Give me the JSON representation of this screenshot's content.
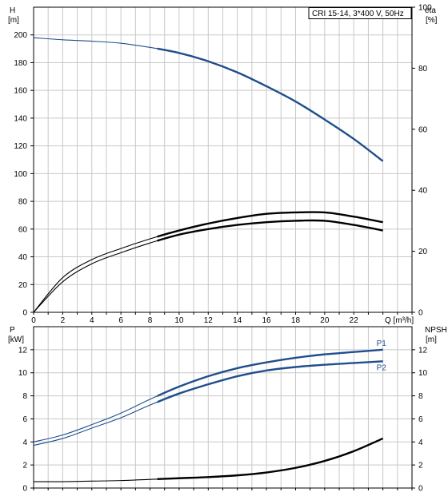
{
  "chart_data": [
    {
      "type": "line",
      "name": "top",
      "title": "CRI 15-14, 3*400 V, 50Hz",
      "xlabel": "Q [m³/h]",
      "ylabel_left": "H",
      "ylabel_left_unit": "[m]",
      "ylabel_right": "eta",
      "ylabel_right_unit": "[%]",
      "xlim": [
        0,
        26
      ],
      "ylim_left": [
        0,
        220
      ],
      "ylim_right": [
        0,
        100
      ],
      "x_ticks": [
        0,
        2,
        4,
        6,
        8,
        10,
        12,
        14,
        16,
        18,
        20,
        22
      ],
      "y_ticks_left": [
        0,
        20,
        40,
        60,
        80,
        100,
        120,
        140,
        160,
        180,
        200
      ],
      "y_ticks_right": [
        0,
        20,
        40,
        60,
        80,
        100
      ],
      "grid": true,
      "series": [
        {
          "color": "#1f4e8c",
          "axis": "left",
          "x": [
            0,
            2,
            4,
            6,
            8,
            10,
            12,
            14,
            16,
            18,
            20,
            22,
            24
          ],
          "y": [
            198,
            196.5,
            195.5,
            194,
            191,
            187,
            181,
            173,
            163,
            152,
            139,
            125,
            109
          ]
        },
        {
          "color": "#000000",
          "axis": "left",
          "x": [
            0,
            2,
            4,
            6,
            8,
            10,
            12,
            14,
            16,
            18,
            20,
            22,
            24
          ],
          "y": [
            0,
            25,
            38,
            46,
            53,
            59,
            64,
            68,
            71,
            72,
            72,
            69,
            65
          ]
        },
        {
          "color": "#000000",
          "axis": "left",
          "x": [
            0,
            2,
            4,
            6,
            8,
            10,
            12,
            14,
            16,
            18,
            20,
            22,
            24
          ],
          "y": [
            0,
            22,
            35,
            43,
            50,
            56,
            60,
            63,
            65,
            66,
            66,
            63,
            59
          ]
        }
      ]
    },
    {
      "type": "line",
      "name": "bottom",
      "xlabel": "",
      "ylabel_left": "P",
      "ylabel_left_unit": "[kW]",
      "ylabel_right": "NPSH",
      "ylabel_right_unit": "[m]",
      "xlim": [
        0,
        26
      ],
      "ylim_left": [
        0,
        14
      ],
      "ylim_right": [
        0,
        14
      ],
      "x_ticks": [],
      "y_ticks_left": [
        0,
        2,
        4,
        6,
        8,
        10,
        12
      ],
      "y_ticks_right": [
        0,
        2,
        4,
        6,
        8,
        10,
        12
      ],
      "grid": true,
      "series": [
        {
          "name": "P1",
          "color": "#1f4e8c",
          "axis": "left",
          "x": [
            0,
            2,
            4,
            6,
            8,
            10,
            12,
            14,
            16,
            18,
            20,
            22,
            24
          ],
          "y": [
            4.0,
            4.6,
            5.5,
            6.5,
            7.7,
            8.8,
            9.7,
            10.4,
            10.9,
            11.3,
            11.6,
            11.8,
            12.0
          ]
        },
        {
          "name": "P2",
          "color": "#1f4e8c",
          "axis": "left",
          "x": [
            0,
            2,
            4,
            6,
            8,
            10,
            12,
            14,
            16,
            18,
            20,
            22,
            24
          ],
          "y": [
            3.7,
            4.3,
            5.2,
            6.1,
            7.2,
            8.2,
            9.0,
            9.7,
            10.2,
            10.5,
            10.7,
            10.85,
            11.0
          ]
        },
        {
          "name": "NPSH",
          "color": "#000000",
          "axis": "right",
          "x": [
            0,
            2,
            4,
            6,
            8,
            10,
            12,
            14,
            16,
            18,
            20,
            22,
            24
          ],
          "y": [
            0.55,
            0.55,
            0.6,
            0.65,
            0.75,
            0.85,
            0.95,
            1.1,
            1.35,
            1.75,
            2.35,
            3.2,
            4.3
          ]
        }
      ]
    }
  ]
}
